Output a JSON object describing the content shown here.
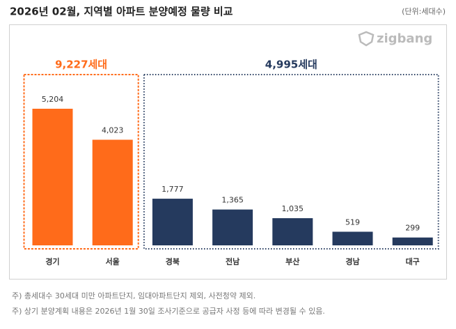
{
  "chart_data": {
    "type": "bar",
    "title": "2026년 02월, 지역별 아파트 분양예정 물량 비교",
    "unit_note": "(단위:세대수)",
    "brand": "zigbang",
    "categories": [
      "경기",
      "서울",
      "경북",
      "전남",
      "부산",
      "경남",
      "대구"
    ],
    "values": [
      5204,
      4023,
      1777,
      1365,
      1035,
      519,
      299
    ],
    "value_labels": [
      "5,204",
      "4,023",
      "1,777",
      "1,365",
      "1,035",
      "519",
      "299"
    ],
    "colors": [
      "#ff6b1a",
      "#ff6b1a",
      "#253a5e",
      "#253a5e",
      "#253a5e",
      "#253a5e",
      "#253a5e"
    ],
    "groups": [
      {
        "label": "9,227세대",
        "color": "#ff6b1a",
        "style": "dashed",
        "categories": [
          "경기",
          "서울"
        ]
      },
      {
        "label": "4,995세대",
        "color": "#253a5e",
        "style": "dotted",
        "categories": [
          "경북",
          "전남",
          "부산",
          "경남",
          "대구"
        ]
      }
    ],
    "notes": [
      "주) 총세대수 30세대 미만 아파트단지, 임대아파트단지 제외, 사전청약 제외.",
      "주) 상기 분양계획 내용은 2026년 1월 30일 조사기준으로 공급자 사정 등에 따라 변경될 수 있음."
    ]
  }
}
